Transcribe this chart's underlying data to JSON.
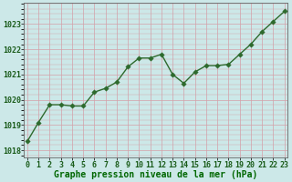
{
  "x": [
    0,
    1,
    2,
    3,
    4,
    5,
    6,
    7,
    8,
    9,
    10,
    11,
    12,
    13,
    14,
    15,
    16,
    17,
    18,
    19,
    20,
    21,
    22,
    23
  ],
  "y": [
    1018.35,
    1019.1,
    1019.8,
    1019.8,
    1019.75,
    1019.75,
    1020.3,
    1020.45,
    1020.7,
    1021.3,
    1021.65,
    1021.65,
    1021.8,
    1021.0,
    1020.65,
    1021.1,
    1021.35,
    1021.35,
    1021.4,
    1021.8,
    1022.2,
    1022.7,
    1023.1,
    1023.5
  ],
  "line_color": "#2d6a2d",
  "marker_color": "#2d6a2d",
  "bg_color": "#cce8e8",
  "grid_color_major_y": "#d4a0a8",
  "grid_color_major_x": "#d4a0a8",
  "xlabel": "Graphe pression niveau de la mer (hPa)",
  "xlabel_color": "#006600",
  "xlabel_fontsize": 7,
  "ylabel_ticks": [
    1018,
    1019,
    1020,
    1021,
    1022,
    1023
  ],
  "ylim": [
    1017.7,
    1023.85
  ],
  "xlim": [
    -0.3,
    23.3
  ],
  "spine_color": "#666666",
  "tick_color": "#1a5c1a",
  "tick_fontsize": 6,
  "marker_size": 2.8,
  "line_width": 1.0,
  "figsize": [
    3.2,
    2.0
  ],
  "dpi": 100
}
